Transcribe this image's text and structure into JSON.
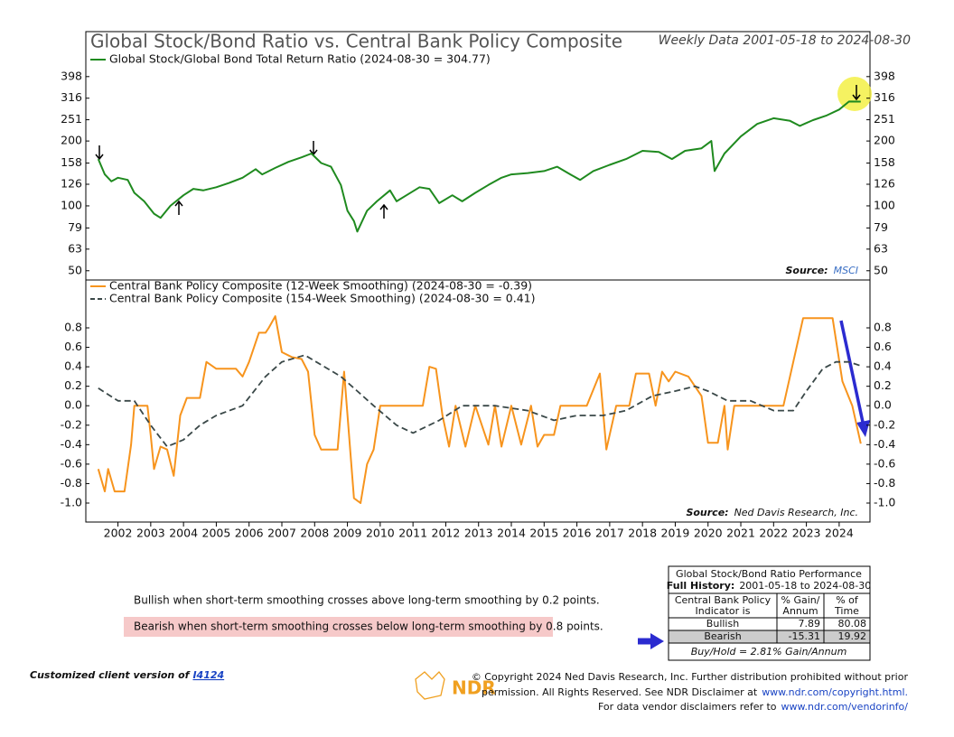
{
  "chart_data": [
    {
      "type": "line",
      "title": "Global Stock/Bond Ratio vs. Central Bank Policy Composite",
      "subtitle": "Weekly Data 2001-05-18 to 2024-08-30",
      "log": true,
      "xlim": [
        2001.02,
        2024.94
      ],
      "ylim": [
        45.3,
        496
      ],
      "yticks": [
        50,
        63,
        79,
        100,
        126,
        158,
        200,
        251,
        316,
        398
      ],
      "series": [
        {
          "name": "Global Stock/Global Bond Total Return Ratio (2024-08-30 = 304.77)",
          "color": "#1f8a1f",
          "x": [
            2001.4,
            2001.6,
            2001.8,
            2002.0,
            2002.3,
            2002.5,
            2002.8,
            2003.1,
            2003.3,
            2003.6,
            2004.0,
            2004.3,
            2004.6,
            2005.0,
            2005.4,
            2005.8,
            2006.2,
            2006.4,
            2006.8,
            2007.2,
            2007.6,
            2007.9,
            2008.2,
            2008.5,
            2008.8,
            2009.0,
            2009.2,
            2009.3,
            2009.6,
            2009.9,
            2010.3,
            2010.5,
            2010.8,
            2011.2,
            2011.5,
            2011.8,
            2012.2,
            2012.5,
            2012.9,
            2013.3,
            2013.7,
            2014.0,
            2014.5,
            2015.0,
            2015.4,
            2015.8,
            2016.1,
            2016.5,
            2017.0,
            2017.5,
            2018.0,
            2018.5,
            2018.9,
            2019.3,
            2019.8,
            2020.1,
            2020.2,
            2020.5,
            2021.0,
            2021.5,
            2022.0,
            2022.5,
            2022.8,
            2023.2,
            2023.6,
            2024.0,
            2024.3,
            2024.66
          ],
          "values": [
            165,
            140,
            130,
            135,
            132,
            115,
            105,
            92,
            88,
            100,
            112,
            120,
            118,
            122,
            128,
            135,
            148,
            140,
            150,
            160,
            168,
            175,
            158,
            152,
            125,
            95,
            85,
            76,
            95,
            105,
            118,
            105,
            112,
            122,
            120,
            103,
            112,
            105,
            115,
            125,
            135,
            140,
            142,
            145,
            152,
            140,
            132,
            145,
            155,
            165,
            180,
            178,
            165,
            180,
            185,
            200,
            145,
            175,
            210,
            240,
            255,
            248,
            235,
            250,
            262,
            280,
            305,
            304.77
          ]
        }
      ],
      "source_label": "Source:",
      "source": "MSCI"
    },
    {
      "type": "line",
      "xlim": [
        2001.02,
        2024.94
      ],
      "xticks": [
        2002,
        2003,
        2004,
        2005,
        2006,
        2007,
        2008,
        2009,
        2010,
        2011,
        2012,
        2013,
        2014,
        2015,
        2016,
        2017,
        2018,
        2019,
        2020,
        2021,
        2022,
        2023,
        2024
      ],
      "ylim": [
        -1.195,
        0.967
      ],
      "yticks": [
        0.8,
        0.6,
        0.4,
        0.2,
        {
          "value": 0,
          "label": "0.0"
        },
        -0.2,
        -0.4,
        -0.6,
        -0.8,
        {
          "value": -1,
          "label": "-1.0"
        }
      ],
      "series": [
        {
          "name": "Central Bank Policy Composite (12-Week Smoothing) (2024-08-30 = -0.39)",
          "color": "#f7941d",
          "dash": false,
          "x": [
            2001.4,
            2001.6,
            2001.7,
            2001.9,
            2002.2,
            2002.4,
            2002.5,
            2002.9,
            2003.0,
            2003.1,
            2003.3,
            2003.5,
            2003.7,
            2003.9,
            2004.1,
            2004.5,
            2004.7,
            2005.0,
            2005.6,
            2005.8,
            2006.0,
            2006.3,
            2006.5,
            2006.6,
            2006.8,
            2007.0,
            2007.3,
            2007.6,
            2007.8,
            2008.0,
            2008.2,
            2008.7,
            2008.9,
            2009.2,
            2009.4,
            2009.6,
            2009.8,
            2010.0,
            2011.3,
            2011.5,
            2011.7,
            2011.9,
            2012.1,
            2012.3,
            2012.6,
            2012.9,
            2013.3,
            2013.5,
            2013.7,
            2014.0,
            2014.3,
            2014.6,
            2014.8,
            2015.0,
            2015.3,
            2015.5,
            2016.3,
            2016.7,
            2016.9,
            2017.2,
            2017.6,
            2017.8,
            2018.2,
            2018.4,
            2018.6,
            2018.8,
            2019.0,
            2019.4,
            2019.8,
            2020.0,
            2020.3,
            2020.5,
            2020.6,
            2020.8,
            2022.3,
            2022.6,
            2022.9,
            2023.8,
            2024.1,
            2024.4,
            2024.66
          ],
          "values": [
            -0.65,
            -0.88,
            -0.65,
            -0.88,
            -0.88,
            -0.4,
            0,
            0,
            -0.3,
            -0.65,
            -0.42,
            -0.45,
            -0.72,
            -0.1,
            0.08,
            0.08,
            0.45,
            0.38,
            0.38,
            0.3,
            0.45,
            0.75,
            0.75,
            0.8,
            0.92,
            0.55,
            0.5,
            0.48,
            0.35,
            -0.3,
            -0.45,
            -0.45,
            0.35,
            -0.95,
            -1,
            -0.6,
            -0.45,
            0,
            0,
            0.4,
            0.38,
            -0.1,
            -0.42,
            0,
            -0.42,
            0,
            -0.4,
            0,
            -0.42,
            0,
            -0.4,
            0,
            -0.42,
            -0.3,
            -0.3,
            0,
            0,
            0.33,
            -0.45,
            0,
            0,
            0.33,
            0.33,
            0,
            0.35,
            0.25,
            0.35,
            0.3,
            0.1,
            -0.38,
            -0.38,
            0,
            -0.45,
            0,
            0,
            0.45,
            0.9,
            0.9,
            0.25,
            0,
            -0.39
          ]
        },
        {
          "name": "Central Bank Policy Composite (154-Week Smoothing) (2024-08-30 = 0.41)",
          "color": "#3a4848",
          "dash": true,
          "x": [
            2001.4,
            2002.0,
            2002.5,
            2003.0,
            2003.5,
            2004.0,
            2004.5,
            2005.0,
            2005.8,
            2006.5,
            2007.0,
            2007.7,
            2008.3,
            2008.8,
            2009.3,
            2009.8,
            2010.5,
            2011.0,
            2011.8,
            2012.5,
            2013.5,
            2014.5,
            2015.3,
            2016.0,
            2016.8,
            2017.5,
            2018.3,
            2019.0,
            2019.6,
            2020.0,
            2020.6,
            2021.3,
            2022.0,
            2022.6,
            2023.0,
            2023.5,
            2023.9,
            2024.3,
            2024.66
          ],
          "values": [
            0.18,
            0.05,
            0.05,
            -0.2,
            -0.42,
            -0.35,
            -0.2,
            -0.1,
            0,
            0.3,
            0.45,
            0.52,
            0.4,
            0.3,
            0.15,
            0,
            -0.2,
            -0.28,
            -0.15,
            0,
            0,
            -0.05,
            -0.15,
            -0.1,
            -0.1,
            -0.05,
            0.1,
            0.15,
            0.2,
            0.15,
            0.05,
            0.05,
            -0.05,
            -0.05,
            0.15,
            0.38,
            0.45,
            0.45,
            0.41
          ]
        }
      ],
      "source_label": "Source:",
      "source": "Ned Davis Research, Inc."
    }
  ],
  "notes": {
    "bullish": "Bullish when short-term smoothing crosses above long-term smoothing by 0.2 points.",
    "bearish": "Bearish when short-term smoothing crosses below long-term smoothing by 0.8 points."
  },
  "table": {
    "title": "Global Stock/Bond Ratio Performance",
    "history_label": "Full History:",
    "history": "2001-05-18 to 2024-08-30",
    "header": [
      [
        "Central Bank Policy",
        "Indicator is"
      ],
      [
        "% Gain/",
        "Annum"
      ],
      [
        "% of",
        "Time"
      ]
    ],
    "rows": [
      [
        "Bullish",
        7.89,
        80.08
      ],
      [
        "Bearish",
        -15.31,
        19.92
      ]
    ],
    "footer": "Buy/Hold = 2.81% Gain/Annum"
  },
  "footer": {
    "client": "Customized client version of",
    "client_link": "I4124",
    "logo": "NDR",
    "copyright": [
      "© Copyright 2024 Ned Davis Research, Inc. Further distribution prohibited without prior",
      "permission. All Rights Reserved. See NDR Disclaimer at",
      "For data vendor disclaimers refer to"
    ],
    "links": [
      "www.ndr.com/copyright.html.",
      "www.ndr.com/vendorinfo/"
    ]
  }
}
